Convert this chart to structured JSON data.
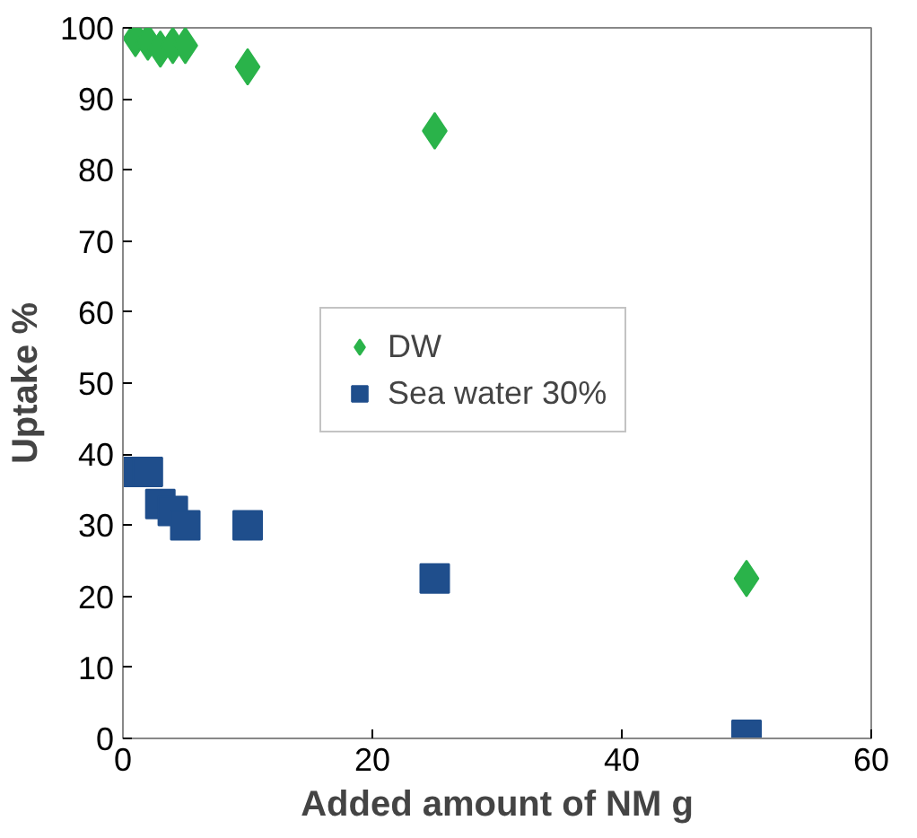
{
  "chart_data": {
    "type": "scatter",
    "xlabel": "Added amount of NM g",
    "ylabel": "Uptake %",
    "x": [
      1,
      2,
      3,
      4,
      5,
      10,
      25,
      50
    ],
    "series": [
      {
        "name": "DW",
        "color": "#2ab34a",
        "marker": "diamond",
        "values": [
          98.5,
          98,
          97,
          97.5,
          97.5,
          94.5,
          85.5,
          22.5
        ]
      },
      {
        "name": "Sea water 30%",
        "color": "#1f4e8c",
        "marker": "square",
        "values": [
          37.5,
          37.5,
          33,
          32,
          30,
          30,
          22.5,
          0.5
        ]
      }
    ],
    "xlim": [
      0,
      60
    ],
    "xticks": [
      0,
      20,
      40,
      60
    ],
    "ylim": [
      0,
      100
    ],
    "yticks": [
      0,
      10,
      20,
      30,
      40,
      50,
      60,
      70,
      80,
      90,
      100
    ],
    "grid": false,
    "legend": "center"
  }
}
